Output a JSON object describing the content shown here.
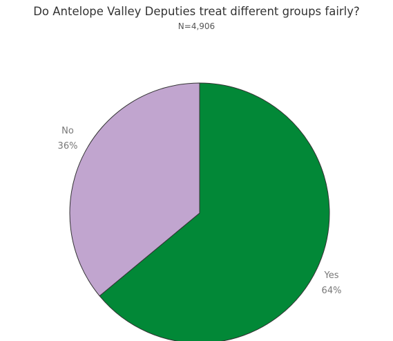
{
  "title": "Do Antelope Valley Deputies treat different groups fairly?",
  "subtitle": "N=4,906",
  "chart_data": {
    "type": "pie",
    "title": "Do Antelope Valley Deputies treat different groups fairly?",
    "subtitle": "N=4,906",
    "slices": [
      {
        "label": "Yes",
        "value": 64,
        "value_label": "64%",
        "color": "#028837"
      },
      {
        "label": "No",
        "value": 36,
        "value_label": "36%",
        "color": "#c1a5cf"
      }
    ],
    "start_angle": "12 o'clock",
    "direction": "clockwise",
    "legend": "none",
    "labels": "outside"
  }
}
